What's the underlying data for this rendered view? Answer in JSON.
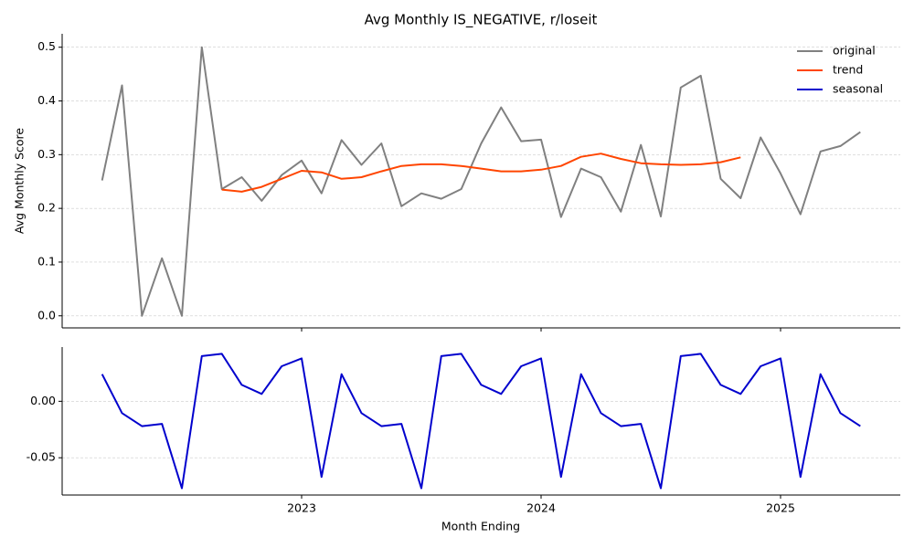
{
  "chart_data": [
    {
      "type": "line",
      "title": "Avg Monthly IS_NEGATIVE, r/loseit",
      "ylabel": "Avg Monthly Score",
      "x": [
        "2022-02",
        "2022-03",
        "2022-04",
        "2022-05",
        "2022-06",
        "2022-07",
        "2022-08",
        "2022-09",
        "2022-10",
        "2022-11",
        "2022-12",
        "2023-01",
        "2023-02",
        "2023-03",
        "2023-04",
        "2023-05",
        "2023-06",
        "2023-07",
        "2023-08",
        "2023-09",
        "2023-10",
        "2023-11",
        "2023-12",
        "2024-01",
        "2024-02",
        "2024-03",
        "2024-04",
        "2024-05",
        "2024-06",
        "2024-07",
        "2024-08",
        "2024-09",
        "2024-10",
        "2024-11",
        "2024-12",
        "2025-01",
        "2025-02",
        "2025-03",
        "2025-04"
      ],
      "series": [
        {
          "name": "original",
          "color": "#808080",
          "values": [
            0.252,
            0.429,
            0,
            0.107,
            0,
            0.5,
            0.236,
            0.258,
            0.214,
            0.262,
            0.289,
            0.228,
            0.327,
            0.281,
            0.321,
            0.204,
            0.228,
            0.218,
            0.236,
            0.321,
            0.388,
            0.325,
            0.328,
            0.184,
            0.274,
            0.258,
            0.194,
            0.318,
            0.185,
            0.425,
            0.447,
            0.255,
            0.219,
            0.332,
            0.265,
            0.189,
            0.306,
            0.316,
            0.342
          ]
        },
        {
          "name": "trend",
          "color": "#ff4500",
          "values": [
            null,
            null,
            null,
            null,
            null,
            null,
            0.235,
            0.231,
            0.24,
            0.255,
            0.27,
            0.267,
            0.255,
            0.258,
            0.269,
            0.279,
            0.282,
            0.282,
            0.279,
            0.274,
            0.269,
            0.269,
            0.272,
            0.279,
            0.296,
            0.302,
            0.292,
            0.284,
            0.282,
            0.281,
            0.282,
            0.286,
            0.295,
            null,
            null,
            null,
            null,
            null,
            null
          ]
        }
      ],
      "xlim": [
        2022.0,
        2025.5
      ],
      "ylim": [
        -0.0225,
        0.525
      ],
      "yticks": [
        {
          "value": 0,
          "label": "0.0"
        },
        0.1,
        0.2,
        0.3,
        0.4,
        0.5
      ],
      "grid": true,
      "legend": "upper right"
    },
    {
      "type": "line",
      "xlabel": "Month Ending",
      "x": [
        "2022-02",
        "2022-03",
        "2022-04",
        "2022-05",
        "2022-06",
        "2022-07",
        "2022-08",
        "2022-09",
        "2022-10",
        "2022-11",
        "2022-12",
        "2023-01",
        "2023-02",
        "2023-03",
        "2023-04",
        "2023-05",
        "2023-06",
        "2023-07",
        "2023-08",
        "2023-09",
        "2023-10",
        "2023-11",
        "2023-12",
        "2024-01",
        "2024-02",
        "2024-03",
        "2024-04",
        "2024-05",
        "2024-06",
        "2024-07",
        "2024-08",
        "2024-09",
        "2024-10",
        "2024-11",
        "2024-12",
        "2025-01",
        "2025-02",
        "2025-03",
        "2025-04"
      ],
      "series": [
        {
          "name": "seasonal",
          "color": "#0000cd",
          "values": [
            0.024,
            -0.0105,
            -0.022,
            -0.02,
            -0.077,
            0.04,
            0.042,
            0.0145,
            0.0065,
            0.031,
            0.038,
            -0.067,
            0.024,
            -0.0105,
            -0.022,
            -0.02,
            -0.077,
            0.04,
            0.042,
            0.0145,
            0.0065,
            0.031,
            0.038,
            -0.067,
            0.024,
            -0.0105,
            -0.022,
            -0.02,
            -0.077,
            0.04,
            0.042,
            0.0145,
            0.0065,
            0.031,
            0.038,
            -0.067,
            0.024,
            -0.0105,
            -0.022
          ]
        }
      ],
      "xlim": [
        2022.0,
        2025.5
      ],
      "ylim": [
        -0.083,
        0.048
      ],
      "xticks": [
        2023,
        2024,
        2025
      ],
      "yticks": [
        {
          "value": -0.05,
          "label": "-0.05"
        },
        {
          "value": 0,
          "label": "0.00"
        }
      ],
      "grid": true
    }
  ]
}
